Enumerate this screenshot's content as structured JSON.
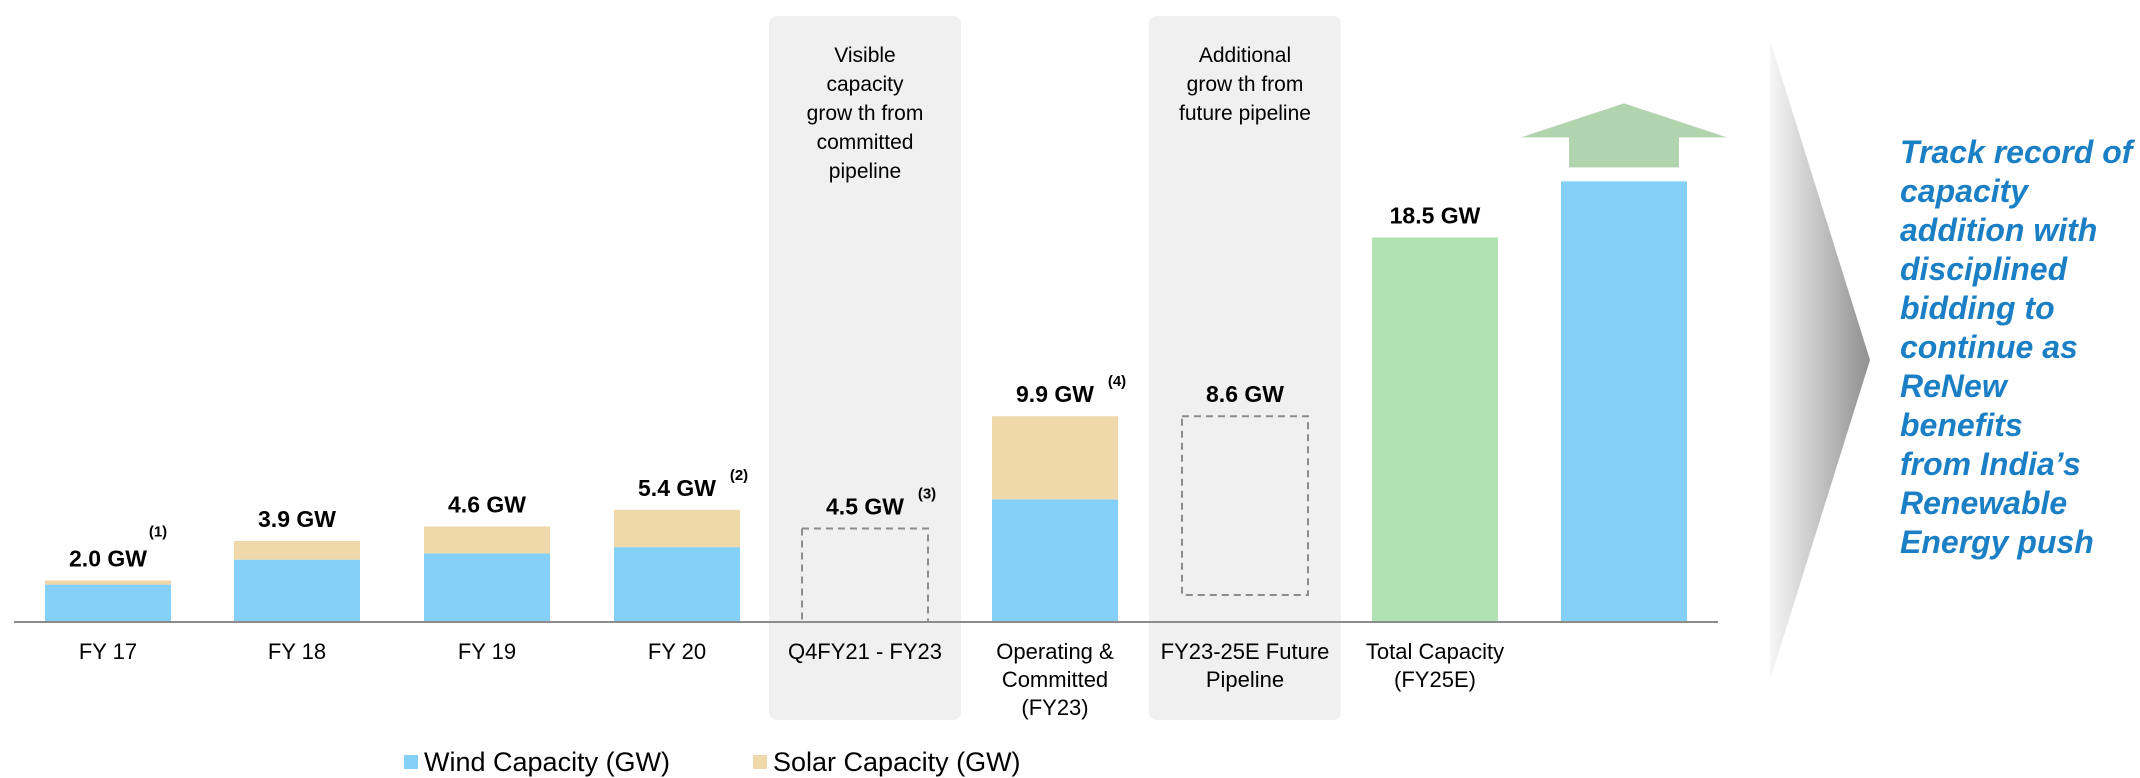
{
  "chart_data": {
    "type": "bar",
    "stacked": true,
    "categories": [
      "FY 17",
      "FY 18",
      "FY 19",
      "FY 20",
      "Q4FY21 - FY23",
      "Operating & Committed (FY23)",
      "FY23-25E Future Pipeline",
      "Total Capacity (FY25E)",
      ""
    ],
    "category_lines": [
      [
        "FY 17"
      ],
      [
        "FY 18"
      ],
      [
        "FY 19"
      ],
      [
        "FY 20"
      ],
      [
        "Q4FY21 - FY23"
      ],
      [
        "Operating &",
        "Committed",
        "(FY23)"
      ],
      [
        "FY23-25E Future",
        "Pipeline"
      ],
      [
        "Total Capacity",
        "(FY25E)"
      ],
      []
    ],
    "series": [
      {
        "name": "Wind Capacity (GW)",
        "color": "#85d0f8",
        "values": [
          1.8,
          3.0,
          3.3,
          3.6,
          null,
          5.9,
          null,
          null,
          21.2
        ]
      },
      {
        "name": "Solar Capacity (GW)",
        "color": "#efd9aa",
        "values": [
          0.2,
          0.9,
          1.3,
          1.8,
          null,
          4.0,
          null,
          null,
          null
        ]
      }
    ],
    "future_pipeline_series": [
      {
        "category": "Q4FY21 - FY23",
        "value": 4.5,
        "base": 4.5,
        "style": "dashed-outline"
      },
      {
        "category": "FY23-25E Future Pipeline",
        "value": 8.6,
        "base": 9.9,
        "style": "dashed-outline"
      }
    ],
    "total_bar": {
      "category": "Total Capacity (FY25E)",
      "value": 18.5,
      "color": "#b1e2b3"
    },
    "data_labels": [
      {
        "category": "FY 17",
        "text": "2.0 GW",
        "footnote": "(1)"
      },
      {
        "category": "FY 18",
        "text": "3.9 GW",
        "footnote": ""
      },
      {
        "category": "FY 19",
        "text": "4.6 GW",
        "footnote": ""
      },
      {
        "category": "FY 20",
        "text": "5.4 GW",
        "footnote": "(2)"
      },
      {
        "category": "Q4FY21 - FY23",
        "text": "4.5 GW",
        "footnote": "(3)"
      },
      {
        "category": "Operating & Committed (FY23)",
        "text": "9.9 GW",
        "footnote": "(4)"
      },
      {
        "category": "FY23-25E Future Pipeline",
        "text": "8.6 GW",
        "footnote": ""
      },
      {
        "category": "Total Capacity (FY25E)",
        "text": "18.5 GW",
        "footnote": ""
      }
    ],
    "panels": [
      {
        "category": "Q4FY21 - FY23",
        "lines": [
          "Visible",
          "capacity",
          "grow th from",
          "committed",
          "pipeline"
        ]
      },
      {
        "category": "FY23-25E Future Pipeline",
        "lines": [
          "Additional",
          "grow th from",
          "future pipeline"
        ]
      }
    ],
    "arrow": {
      "category": "",
      "color": "#b1d3ad"
    },
    "ylim": [
      0,
      28
    ],
    "grid": false,
    "legend_position": "bottom",
    "title": "",
    "xlabel": "",
    "ylabel": ""
  },
  "callout": {
    "lines": [
      "Track record of",
      "capacity",
      "addition with",
      "disciplined",
      "bidding to",
      "continue as",
      "ReNew benefits",
      "from India’s",
      "Renewable",
      "Energy push"
    ],
    "color": "#1a7fc4"
  },
  "legend": {
    "wind_label": "Wind Capacity (GW)",
    "solar_label": "Solar Capacity (GW)",
    "wind_color": "#85d0f8",
    "solar_color": "#efd9aa"
  }
}
